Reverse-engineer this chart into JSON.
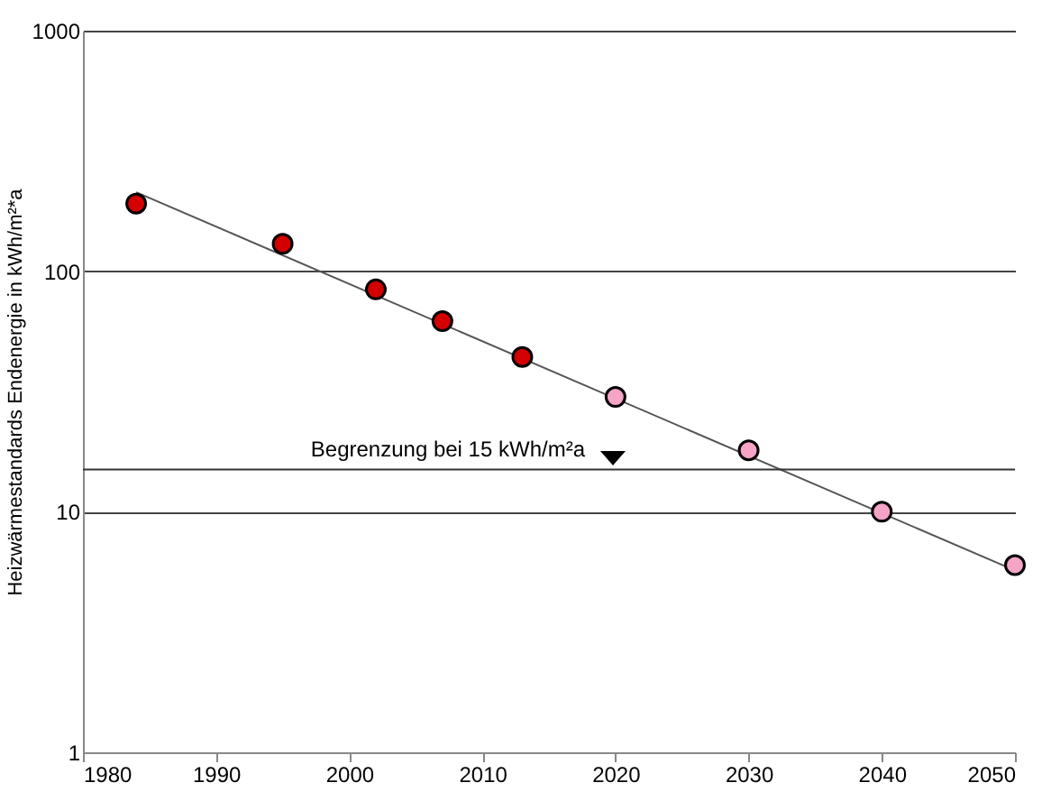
{
  "chart_data": {
    "type": "scatter",
    "ylabel": "Heizwärmestandards Endenergie in kWh/m²*a",
    "log": "y",
    "grid": "y",
    "marker": "circle",
    "xlim": [
      1980,
      2050
    ],
    "xticks": [
      1980,
      1990,
      2000,
      2010,
      2020,
      2030,
      2040,
      2050
    ],
    "ylim": [
      1,
      1000
    ],
    "yticks": [
      1,
      10,
      100,
      1000
    ],
    "series": [
      {
        "type": "line",
        "marker": "none",
        "color": "#555555",
        "x": [
          1984,
          2050
        ],
        "values": [
          213,
          5.7
        ]
      },
      {
        "color": "#d40000",
        "x": [
          1984,
          1995,
          2002,
          2007,
          2013
        ],
        "values": [
          191,
          130,
          84,
          62,
          44
        ]
      },
      {
        "color": "#f5a3c7",
        "x": [
          2020,
          2030,
          2040,
          2050
        ],
        "values": [
          30,
          18,
          10,
          6
        ]
      }
    ],
    "ref_lines": [
      {
        "axis": "y",
        "value": 15,
        "label": "Begrenzung bei 15 kWh/m²a",
        "color": "#333333"
      }
    ]
  }
}
